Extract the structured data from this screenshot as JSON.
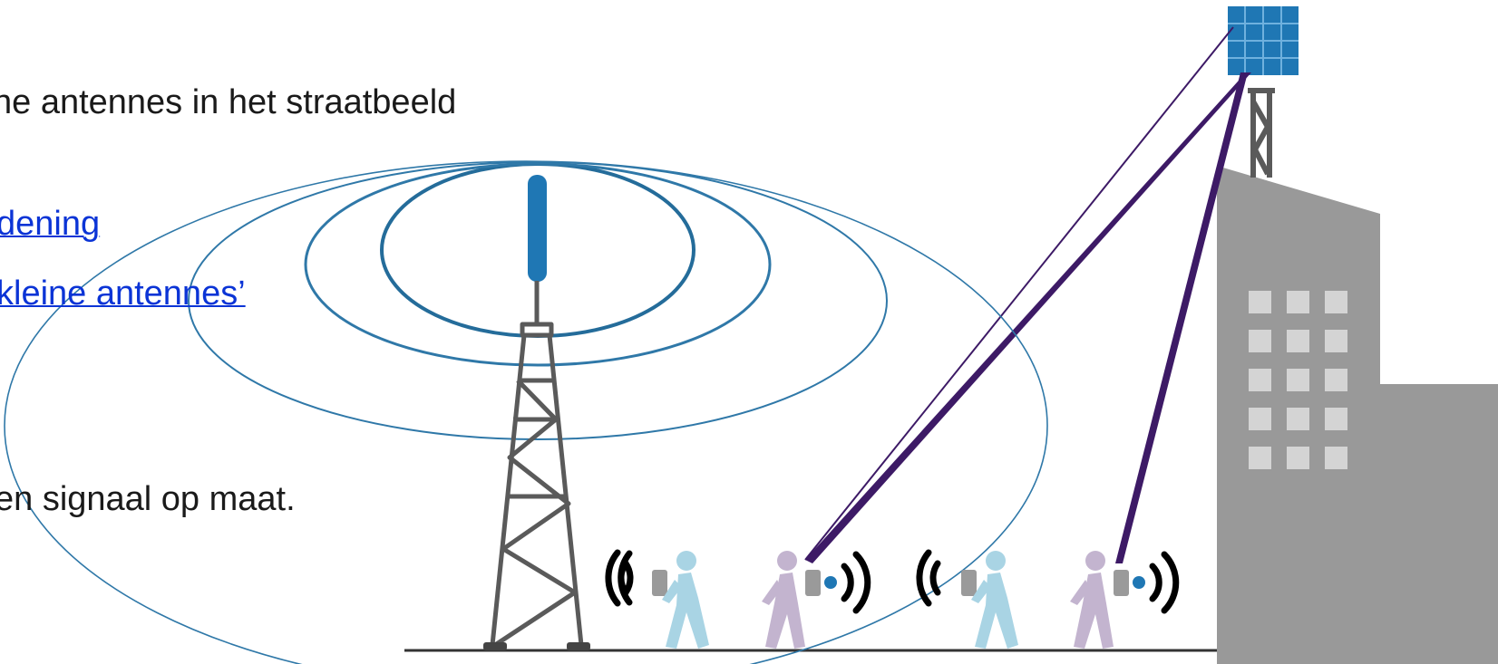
{
  "text": {
    "line1": "ne antennes in het straatbeeld",
    "link1": "dening",
    "link2": " kleine antennes’",
    "line2": "en signaal op maat."
  },
  "colors": {
    "tower": "#5a5a5a",
    "antenna": "#1f77b4",
    "waves": "#2f78a8",
    "beam": "#3d1a66",
    "building": "#999999",
    "windows": "#d4d4d4",
    "panel": "#1f77b4",
    "person_light": "#a9d4e4",
    "person_purple": "#c3b4cf",
    "phone": "#9a9a9a",
    "signal": "#000000",
    "link": "#0b34d6"
  },
  "icons": [
    "macro-tower-icon",
    "small-cell-antenna-icon",
    "walking-person-icon",
    "phone-icon",
    "signal-waves-icon",
    "building-icon"
  ]
}
